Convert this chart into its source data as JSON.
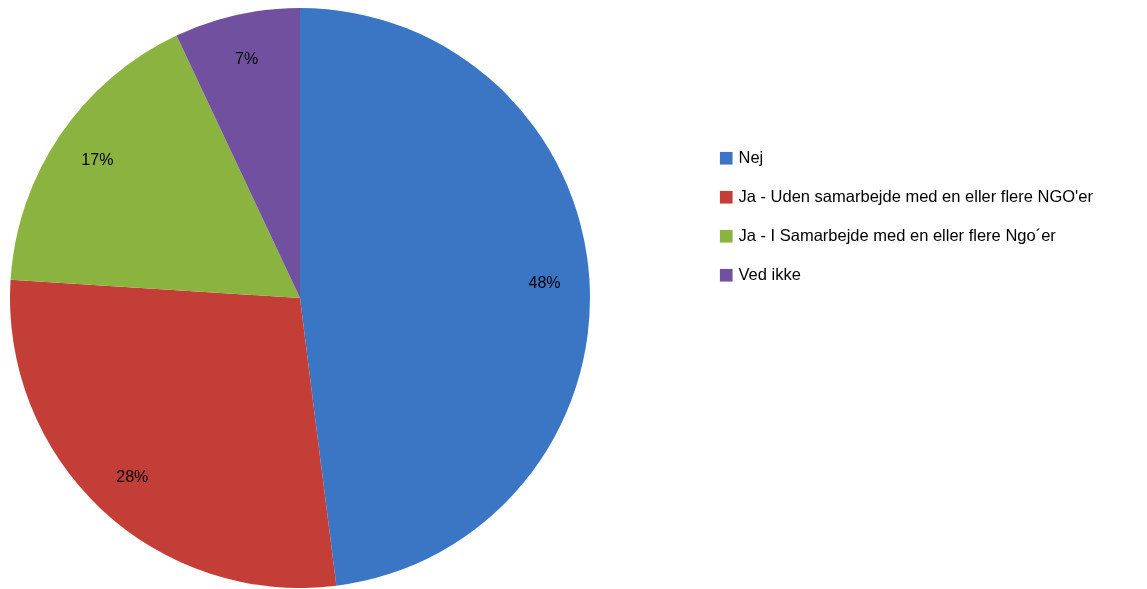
{
  "chart_data": {
    "type": "pie",
    "categories": [
      "Nej",
      "Ja - Uden samarbejde med en eller flere NGO'er",
      "Ja - I Samarbejde med en eller flere Ngo´er",
      "Ved ikke"
    ],
    "values": [
      48,
      28,
      17,
      7
    ],
    "colors": [
      "#3b76c4",
      "#c43e38",
      "#8ab43f",
      "#7150a0"
    ],
    "value_labels": [
      "48%",
      "28%",
      "17%",
      "7%"
    ],
    "legend": "right"
  }
}
